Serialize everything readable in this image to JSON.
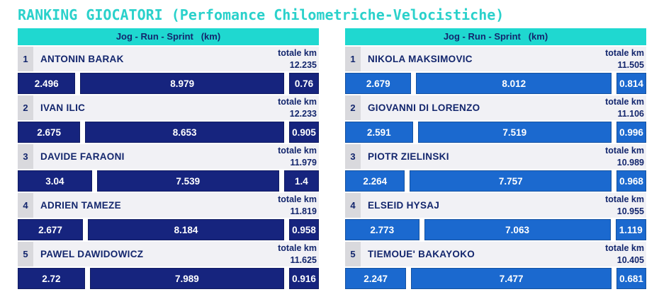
{
  "title": "RANKING GIOCATORI (Perfomance Chilometriche-Velocistiche)",
  "labels": {
    "totale": "totale km",
    "column_header": "Jog - Run - Sprint   (km)"
  },
  "colors": {
    "title_accent": "#2ad1cb",
    "header_bar": "#1fd8d0",
    "navy_text": "#13266d",
    "left_bar": "#16247e",
    "right_bar": "#1b69cf",
    "label_row_bg": "#f1f1f5",
    "rank_box_bg": "#d9d9dd"
  },
  "chart_data": [
    {
      "type": "bar",
      "stacked": true,
      "orientation": "horizontal",
      "title": "Jog - Run - Sprint (km)",
      "legend_position": "none",
      "grid": false,
      "categories": [
        "ANTONIN BARAK",
        "IVAN ILIC",
        "DAVIDE FARAONI",
        "ADRIEN TAMEZE",
        "PAWEL DAWIDOWICZ"
      ],
      "series": [
        {
          "name": "Jog",
          "values": [
            2.496,
            2.675,
            3.04,
            2.677,
            2.72
          ]
        },
        {
          "name": "Run",
          "values": [
            8.979,
            8.653,
            7.539,
            8.184,
            7.989
          ]
        },
        {
          "name": "Sprint",
          "values": [
            0.76,
            0.905,
            1.4,
            0.958,
            0.916
          ]
        }
      ],
      "totals": [
        12.235,
        12.233,
        11.979,
        11.819,
        11.625
      ],
      "bar_color": "#16247e"
    },
    {
      "type": "bar",
      "stacked": true,
      "orientation": "horizontal",
      "title": "Jog - Run - Sprint (km)",
      "legend_position": "none",
      "grid": false,
      "categories": [
        "NIKOLA MAKSIMOVIC",
        "GIOVANNI DI LORENZO",
        "PIOTR ZIELINSKI",
        "ELSEID HYSAJ",
        "TIEMOUE' BAKAYOKO"
      ],
      "series": [
        {
          "name": "Jog",
          "values": [
            2.679,
            2.591,
            2.264,
            2.773,
            2.247
          ]
        },
        {
          "name": "Run",
          "values": [
            8.012,
            7.519,
            7.757,
            7.063,
            7.477
          ]
        },
        {
          "name": "Sprint",
          "values": [
            0.814,
            0.996,
            0.968,
            1.119,
            0.681
          ]
        }
      ],
      "totals": [
        11.505,
        11.106,
        10.989,
        10.955,
        10.405
      ],
      "bar_color": "#1b69cf"
    }
  ],
  "columns": [
    {
      "header": "Jog - Run - Sprint   (km)",
      "bar_color": "#16247e",
      "players": [
        {
          "rank": "1",
          "name": "ANTONIN BARAK",
          "total": "12.235",
          "jog": "2.496",
          "run": "8.979",
          "sprint": "0.76"
        },
        {
          "rank": "2",
          "name": "IVAN ILIC",
          "total": "12.233",
          "jog": "2.675",
          "run": "8.653",
          "sprint": "0.905"
        },
        {
          "rank": "3",
          "name": "DAVIDE FARAONI",
          "total": "11.979",
          "jog": "3.04",
          "run": "7.539",
          "sprint": "1.4"
        },
        {
          "rank": "4",
          "name": "ADRIEN TAMEZE",
          "total": "11.819",
          "jog": "2.677",
          "run": "8.184",
          "sprint": "0.958"
        },
        {
          "rank": "5",
          "name": "PAWEL DAWIDOWICZ",
          "total": "11.625",
          "jog": "2.72",
          "run": "7.989",
          "sprint": "0.916"
        }
      ]
    },
    {
      "header": "Jog - Run - Sprint   (km)",
      "bar_color": "#1b69cf",
      "players": [
        {
          "rank": "1",
          "name": "NIKOLA MAKSIMOVIC",
          "total": "11.505",
          "jog": "2.679",
          "run": "8.012",
          "sprint": "0.814"
        },
        {
          "rank": "2",
          "name": "GIOVANNI DI LORENZO",
          "total": "11.106",
          "jog": "2.591",
          "run": "7.519",
          "sprint": "0.996"
        },
        {
          "rank": "3",
          "name": "PIOTR ZIELINSKI",
          "total": "10.989",
          "jog": "2.264",
          "run": "7.757",
          "sprint": "0.968"
        },
        {
          "rank": "4",
          "name": "ELSEID HYSAJ",
          "total": "10.955",
          "jog": "2.773",
          "run": "7.063",
          "sprint": "1.119"
        },
        {
          "rank": "5",
          "name": "TIEMOUE' BAKAYOKO",
          "total": "10.405",
          "jog": "2.247",
          "run": "7.477",
          "sprint": "0.681"
        }
      ]
    }
  ]
}
